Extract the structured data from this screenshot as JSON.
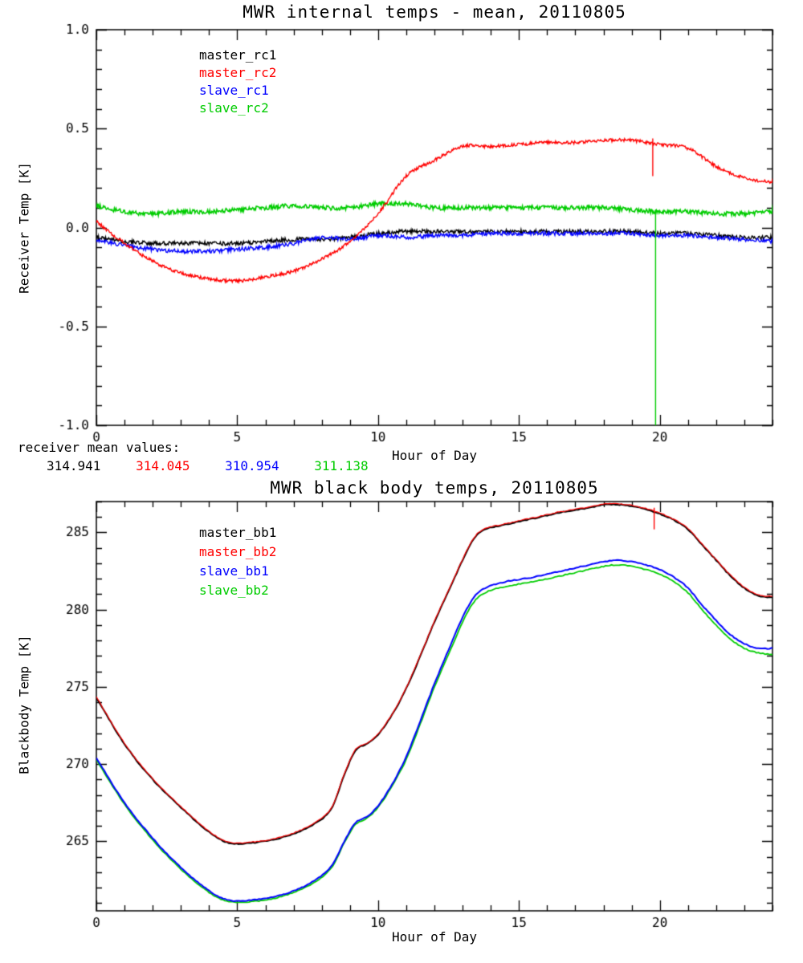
{
  "page": {
    "background": "#ffffff"
  },
  "footnote": {
    "label": "receiver mean values:",
    "values": [
      {
        "text": "314.941",
        "color": "#000000"
      },
      {
        "text": "314.045",
        "color": "#ff0000"
      },
      {
        "text": "310.954",
        "color": "#0000ff"
      },
      {
        "text": "311.138",
        "color": "#00cc00"
      }
    ]
  },
  "chart_data": [
    {
      "type": "line",
      "title": "MWR internal temps - mean, 20110805",
      "xlabel": "Hour of Day",
      "ylabel": "Receiver Temp [K]",
      "xlim": [
        0,
        24
      ],
      "ylim": [
        -1.0,
        1.0
      ],
      "xticks": [
        0,
        5,
        10,
        15,
        20
      ],
      "xtick_labels": [
        "0",
        "5",
        "10",
        "15",
        "20"
      ],
      "xmajor": 5,
      "xminor": 1,
      "yticks": [
        -1.0,
        -0.5,
        0.0,
        0.5,
        1.0
      ],
      "ytick_labels": [
        "-1.0",
        "-0.5",
        "0.0",
        "0.5",
        "1.0"
      ],
      "yminor": 0.1,
      "grid": false,
      "legend_position": "upper-left-inside",
      "series": [
        {
          "name": "master_rc1",
          "color": "#000000",
          "noise": 0.01,
          "x": [
            0,
            1,
            2,
            3,
            4,
            5,
            6,
            7,
            8,
            9,
            10,
            11,
            12,
            13,
            14,
            15,
            16,
            17,
            18,
            19,
            20,
            21,
            22,
            23,
            24
          ],
          "y": [
            -0.05,
            -0.07,
            -0.08,
            -0.08,
            -0.08,
            -0.08,
            -0.07,
            -0.06,
            -0.06,
            -0.05,
            -0.03,
            -0.02,
            -0.02,
            -0.02,
            -0.02,
            -0.02,
            -0.02,
            -0.02,
            -0.02,
            -0.02,
            -0.03,
            -0.03,
            -0.04,
            -0.05,
            -0.05
          ]
        },
        {
          "name": "master_rc2",
          "color": "#ff0000",
          "noise": 0.008,
          "x": [
            0,
            1,
            2,
            3,
            4,
            5,
            6,
            7,
            8,
            9,
            10,
            11,
            12,
            13,
            14,
            15,
            16,
            17,
            18,
            19,
            20,
            21,
            22,
            23,
            24
          ],
          "y": [
            0.03,
            -0.08,
            -0.17,
            -0.23,
            -0.26,
            -0.27,
            -0.25,
            -0.22,
            -0.16,
            -0.07,
            0.07,
            0.26,
            0.34,
            0.41,
            0.41,
            0.42,
            0.43,
            0.43,
            0.44,
            0.44,
            0.42,
            0.4,
            0.31,
            0.25,
            0.23
          ]
        },
        {
          "name": "slave_rc1",
          "color": "#0000ff",
          "noise": 0.01,
          "x": [
            0,
            1,
            2,
            3,
            4,
            5,
            6,
            7,
            8,
            9,
            10,
            11,
            12,
            13,
            14,
            15,
            16,
            17,
            18,
            19,
            20,
            21,
            22,
            23,
            24
          ],
          "y": [
            -0.06,
            -0.09,
            -0.11,
            -0.12,
            -0.12,
            -0.11,
            -0.1,
            -0.08,
            -0.05,
            -0.06,
            -0.04,
            -0.05,
            -0.04,
            -0.04,
            -0.03,
            -0.03,
            -0.03,
            -0.03,
            -0.03,
            -0.03,
            -0.04,
            -0.04,
            -0.05,
            -0.06,
            -0.07
          ]
        },
        {
          "name": "slave_rc2",
          "color": "#00cc00",
          "noise": 0.011,
          "x": [
            0,
            1,
            2,
            3,
            4,
            5,
            6,
            7,
            8,
            9,
            10,
            11,
            12,
            13,
            14,
            15,
            16,
            17,
            18,
            19,
            20,
            21,
            22,
            23,
            24
          ],
          "y": [
            0.11,
            0.08,
            0.07,
            0.08,
            0.08,
            0.09,
            0.1,
            0.11,
            0.1,
            0.1,
            0.12,
            0.12,
            0.1,
            0.1,
            0.1,
            0.1,
            0.1,
            0.1,
            0.1,
            0.09,
            0.08,
            0.08,
            0.07,
            0.07,
            0.08
          ]
        }
      ],
      "spikes": [
        {
          "x": 19.75,
          "y_from": 0.45,
          "y_to": 0.26,
          "color": "#ff0000"
        },
        {
          "x": 19.85,
          "y_from": 0.09,
          "y_to": -1.0,
          "color": "#00cc00"
        }
      ]
    },
    {
      "type": "line",
      "title": "MWR black body temps, 20110805",
      "xlabel": "Hour of Day",
      "ylabel": "Blackbody Temp [K]",
      "xlim": [
        0,
        24
      ],
      "ylim": [
        260.5,
        287.0
      ],
      "xticks": [
        0,
        5,
        10,
        15,
        20
      ],
      "xtick_labels": [
        "0",
        "5",
        "10",
        "15",
        "20"
      ],
      "xmajor": 5,
      "xminor": 1,
      "yticks": [
        265,
        270,
        275,
        280,
        285
      ],
      "ytick_labels": [
        "265",
        "270",
        "275",
        "280",
        "285"
      ],
      "yminor": 1,
      "grid": false,
      "legend_position": "upper-left-inside",
      "series": [
        {
          "name": "master_bb1",
          "color": "#000000",
          "noise": 0.03,
          "x": [
            0,
            1,
            2,
            3,
            4,
            4.7,
            5.5,
            6.5,
            7.5,
            8.3,
            8.8,
            9.2,
            9.6,
            10,
            10.5,
            11,
            11.5,
            12,
            12.5,
            13,
            13.4,
            13.8,
            14.5,
            15.5,
            16.5,
            17.5,
            18,
            18.5,
            19,
            19.5,
            20,
            20.5,
            21,
            21.5,
            22,
            22.5,
            23,
            23.5,
            24
          ],
          "y": [
            274.3,
            271.3,
            269.0,
            267.2,
            265.6,
            264.9,
            264.9,
            265.2,
            265.9,
            267.0,
            269.3,
            270.9,
            271.3,
            271.9,
            273.2,
            274.9,
            277.0,
            279.2,
            281.2,
            283.2,
            284.6,
            285.2,
            285.5,
            285.9,
            286.3,
            286.6,
            286.8,
            286.8,
            286.7,
            286.5,
            286.2,
            285.8,
            285.2,
            284.2,
            283.2,
            282.2,
            281.4,
            280.9,
            280.8
          ]
        },
        {
          "name": "master_bb2",
          "color": "#ff0000",
          "noise": 0.03,
          "x": [
            0,
            1,
            2,
            3,
            4,
            4.7,
            5.5,
            6.5,
            7.5,
            8.3,
            8.8,
            9.2,
            9.6,
            10,
            10.5,
            11,
            11.5,
            12,
            12.5,
            13,
            13.4,
            13.8,
            14.5,
            15.5,
            16.5,
            17.5,
            18,
            18.5,
            19,
            19.5,
            20,
            20.5,
            21,
            21.5,
            22,
            22.5,
            23,
            23.5,
            24
          ],
          "y": [
            274.35,
            271.35,
            269.05,
            267.25,
            265.65,
            264.95,
            264.95,
            265.25,
            265.95,
            267.05,
            269.35,
            270.95,
            271.35,
            271.95,
            273.25,
            274.95,
            277.05,
            279.25,
            281.25,
            283.25,
            284.65,
            285.25,
            285.55,
            285.95,
            286.35,
            286.65,
            286.85,
            286.85,
            286.75,
            286.55,
            286.25,
            285.85,
            285.25,
            284.25,
            283.25,
            282.25,
            281.45,
            280.95,
            280.85
          ]
        },
        {
          "name": "slave_bb1",
          "color": "#0000ff",
          "noise": 0.03,
          "x": [
            0,
            1,
            2,
            3,
            4,
            4.7,
            5.5,
            6.5,
            7.5,
            8.3,
            8.8,
            9.2,
            9.6,
            10,
            10.5,
            11,
            11.5,
            12,
            12.5,
            13,
            13.4,
            13.8,
            14.5,
            15.5,
            16.5,
            17.5,
            18,
            18.5,
            19,
            19.5,
            20,
            20.5,
            21,
            21.5,
            22,
            22.5,
            23,
            23.5,
            24
          ],
          "y": [
            270.4,
            267.5,
            265.2,
            263.3,
            261.8,
            261.2,
            261.2,
            261.5,
            262.2,
            263.3,
            265.0,
            266.2,
            266.6,
            267.3,
            268.7,
            270.5,
            272.8,
            275.2,
            277.4,
            279.5,
            280.8,
            281.4,
            281.8,
            282.1,
            282.5,
            282.9,
            283.1,
            283.2,
            283.1,
            282.9,
            282.6,
            282.1,
            281.4,
            280.3,
            279.3,
            278.4,
            277.8,
            277.5,
            277.5
          ]
        },
        {
          "name": "slave_bb2",
          "color": "#00cc00",
          "noise": 0.03,
          "x": [
            0,
            1,
            2,
            3,
            4,
            4.7,
            5.5,
            6.5,
            7.5,
            8.3,
            8.8,
            9.2,
            9.6,
            10,
            10.5,
            11,
            11.5,
            12,
            12.5,
            13,
            13.4,
            13.8,
            14.5,
            15.5,
            16.5,
            17.5,
            18,
            18.5,
            19,
            19.5,
            20,
            20.5,
            21,
            21.5,
            22,
            22.5,
            23,
            23.5,
            24
          ],
          "y": [
            270.3,
            267.4,
            265.1,
            263.2,
            261.7,
            261.1,
            261.1,
            261.4,
            262.1,
            263.2,
            264.9,
            266.1,
            266.5,
            267.2,
            268.6,
            270.3,
            272.6,
            275.0,
            277.1,
            279.2,
            280.5,
            281.1,
            281.5,
            281.8,
            282.2,
            282.6,
            282.8,
            282.9,
            282.8,
            282.6,
            282.3,
            281.8,
            281.1,
            280.0,
            279.0,
            278.1,
            277.5,
            277.2,
            277.1
          ]
        }
      ],
      "spikes": [
        {
          "x": 19.8,
          "y_from": 286.6,
          "y_to": 285.2,
          "color": "#ff0000"
        }
      ]
    }
  ]
}
